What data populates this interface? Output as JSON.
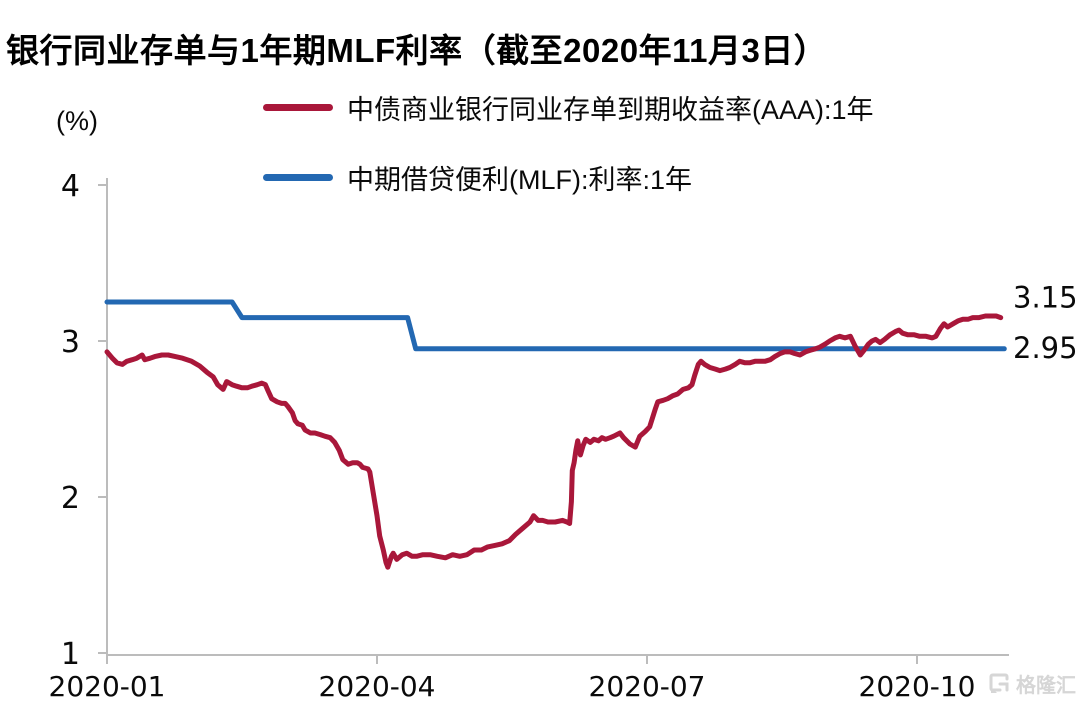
{
  "chart_data": {
    "type": "line",
    "title": "银行同业存单与1年期MLF利率（截至2020年11月3日）",
    "ylabel": "(%)",
    "y_range": [
      1,
      4
    ],
    "y_ticks": [
      "1",
      "2",
      "3",
      "4"
    ],
    "x_range": [
      0,
      10
    ],
    "x_ticks": [
      {
        "pos": 0,
        "label": "2020-01"
      },
      {
        "pos": 3,
        "label": "2020-04"
      },
      {
        "pos": 6,
        "label": "2020-07"
      },
      {
        "pos": 9,
        "label": "2020-10"
      }
    ],
    "grid": "off",
    "legend_position": "top-left",
    "series": [
      {
        "name": "中债商业银行同业存单到期收益率(AAA):1年",
        "color": "#a9173a",
        "end_label": "3.15",
        "end_value": 3.15,
        "points": [
          [
            0.0,
            2.93
          ],
          [
            0.06,
            2.89
          ],
          [
            0.11,
            2.86
          ],
          [
            0.17,
            2.85
          ],
          [
            0.22,
            2.87
          ],
          [
            0.28,
            2.88
          ],
          [
            0.33,
            2.89
          ],
          [
            0.39,
            2.91
          ],
          [
            0.42,
            2.88
          ],
          [
            0.48,
            2.89
          ],
          [
            0.53,
            2.9
          ],
          [
            0.61,
            2.91
          ],
          [
            0.68,
            2.91
          ],
          [
            0.76,
            2.9
          ],
          [
            0.84,
            2.89
          ],
          [
            0.94,
            2.87
          ],
          [
            1.03,
            2.84
          ],
          [
            1.11,
            2.8
          ],
          [
            1.18,
            2.77
          ],
          [
            1.23,
            2.72
          ],
          [
            1.29,
            2.69
          ],
          [
            1.33,
            2.74
          ],
          [
            1.39,
            2.72
          ],
          [
            1.44,
            2.71
          ],
          [
            1.5,
            2.7
          ],
          [
            1.56,
            2.7
          ],
          [
            1.61,
            2.71
          ],
          [
            1.67,
            2.72
          ],
          [
            1.72,
            2.73
          ],
          [
            1.76,
            2.72
          ],
          [
            1.79,
            2.68
          ],
          [
            1.83,
            2.63
          ],
          [
            1.89,
            2.61
          ],
          [
            1.94,
            2.6
          ],
          [
            1.98,
            2.6
          ],
          [
            2.01,
            2.58
          ],
          [
            2.06,
            2.54
          ],
          [
            2.09,
            2.49
          ],
          [
            2.12,
            2.47
          ],
          [
            2.17,
            2.46
          ],
          [
            2.2,
            2.43
          ],
          [
            2.26,
            2.41
          ],
          [
            2.31,
            2.41
          ],
          [
            2.37,
            2.4
          ],
          [
            2.42,
            2.39
          ],
          [
            2.48,
            2.38
          ],
          [
            2.53,
            2.35
          ],
          [
            2.58,
            2.3
          ],
          [
            2.62,
            2.24
          ],
          [
            2.68,
            2.21
          ],
          [
            2.73,
            2.22
          ],
          [
            2.78,
            2.22
          ],
          [
            2.81,
            2.21
          ],
          [
            2.84,
            2.19
          ],
          [
            2.9,
            2.18
          ],
          [
            2.92,
            2.16
          ],
          [
            2.96,
            2.02
          ],
          [
            3.0,
            1.88
          ],
          [
            3.03,
            1.75
          ],
          [
            3.07,
            1.66
          ],
          [
            3.1,
            1.58
          ],
          [
            3.12,
            1.55
          ],
          [
            3.16,
            1.62
          ],
          [
            3.18,
            1.64
          ],
          [
            3.22,
            1.6
          ],
          [
            3.28,
            1.63
          ],
          [
            3.33,
            1.64
          ],
          [
            3.39,
            1.62
          ],
          [
            3.44,
            1.62
          ],
          [
            3.51,
            1.63
          ],
          [
            3.59,
            1.63
          ],
          [
            3.67,
            1.62
          ],
          [
            3.76,
            1.61
          ],
          [
            3.84,
            1.63
          ],
          [
            3.92,
            1.62
          ],
          [
            4.0,
            1.63
          ],
          [
            4.08,
            1.66
          ],
          [
            4.16,
            1.66
          ],
          [
            4.23,
            1.68
          ],
          [
            4.31,
            1.69
          ],
          [
            4.39,
            1.7
          ],
          [
            4.47,
            1.72
          ],
          [
            4.54,
            1.76
          ],
          [
            4.62,
            1.8
          ],
          [
            4.7,
            1.84
          ],
          [
            4.74,
            1.88
          ],
          [
            4.79,
            1.85
          ],
          [
            4.84,
            1.85
          ],
          [
            4.9,
            1.84
          ],
          [
            4.98,
            1.84
          ],
          [
            5.06,
            1.85
          ],
          [
            5.11,
            1.84
          ],
          [
            5.14,
            1.83
          ],
          [
            5.16,
            1.97
          ],
          [
            5.17,
            2.17
          ],
          [
            5.19,
            2.22
          ],
          [
            5.21,
            2.3
          ],
          [
            5.23,
            2.36
          ],
          [
            5.26,
            2.27
          ],
          [
            5.29,
            2.33
          ],
          [
            5.32,
            2.37
          ],
          [
            5.37,
            2.35
          ],
          [
            5.41,
            2.37
          ],
          [
            5.46,
            2.36
          ],
          [
            5.5,
            2.38
          ],
          [
            5.54,
            2.37
          ],
          [
            5.59,
            2.38
          ],
          [
            5.63,
            2.39
          ],
          [
            5.7,
            2.41
          ],
          [
            5.74,
            2.38
          ],
          [
            5.81,
            2.34
          ],
          [
            5.87,
            2.32
          ],
          [
            5.92,
            2.39
          ],
          [
            5.98,
            2.42
          ],
          [
            6.03,
            2.45
          ],
          [
            6.09,
            2.56
          ],
          [
            6.12,
            2.61
          ],
          [
            6.18,
            2.62
          ],
          [
            6.23,
            2.63
          ],
          [
            6.29,
            2.65
          ],
          [
            6.34,
            2.66
          ],
          [
            6.4,
            2.69
          ],
          [
            6.46,
            2.7
          ],
          [
            6.5,
            2.72
          ],
          [
            6.53,
            2.78
          ],
          [
            6.57,
            2.85
          ],
          [
            6.6,
            2.87
          ],
          [
            6.64,
            2.85
          ],
          [
            6.7,
            2.83
          ],
          [
            6.76,
            2.82
          ],
          [
            6.81,
            2.81
          ],
          [
            6.87,
            2.82
          ],
          [
            6.92,
            2.83
          ],
          [
            6.98,
            2.85
          ],
          [
            7.03,
            2.87
          ],
          [
            7.09,
            2.86
          ],
          [
            7.14,
            2.86
          ],
          [
            7.2,
            2.87
          ],
          [
            7.26,
            2.87
          ],
          [
            7.31,
            2.87
          ],
          [
            7.37,
            2.88
          ],
          [
            7.42,
            2.9
          ],
          [
            7.48,
            2.92
          ],
          [
            7.53,
            2.93
          ],
          [
            7.59,
            2.93
          ],
          [
            7.64,
            2.92
          ],
          [
            7.7,
            2.91
          ],
          [
            7.76,
            2.93
          ],
          [
            7.81,
            2.94
          ],
          [
            7.87,
            2.95
          ],
          [
            7.92,
            2.96
          ],
          [
            7.98,
            2.98
          ],
          [
            8.03,
            3.0
          ],
          [
            8.09,
            3.02
          ],
          [
            8.14,
            3.03
          ],
          [
            8.2,
            3.02
          ],
          [
            8.26,
            3.03
          ],
          [
            8.31,
            2.97
          ],
          [
            8.37,
            2.91
          ],
          [
            8.41,
            2.94
          ],
          [
            8.46,
            2.98
          ],
          [
            8.5,
            3.0
          ],
          [
            8.54,
            3.01
          ],
          [
            8.59,
            2.99
          ],
          [
            8.64,
            3.01
          ],
          [
            8.7,
            3.04
          ],
          [
            8.76,
            3.06
          ],
          [
            8.8,
            3.07
          ],
          [
            8.84,
            3.05
          ],
          [
            8.9,
            3.04
          ],
          [
            8.97,
            3.04
          ],
          [
            9.03,
            3.03
          ],
          [
            9.1,
            3.03
          ],
          [
            9.17,
            3.02
          ],
          [
            9.21,
            3.03
          ],
          [
            9.26,
            3.08
          ],
          [
            9.3,
            3.11
          ],
          [
            9.34,
            3.09
          ],
          [
            9.4,
            3.11
          ],
          [
            9.46,
            3.13
          ],
          [
            9.51,
            3.14
          ],
          [
            9.57,
            3.14
          ],
          [
            9.62,
            3.15
          ],
          [
            9.69,
            3.15
          ],
          [
            9.76,
            3.16
          ],
          [
            9.82,
            3.16
          ],
          [
            9.88,
            3.16
          ],
          [
            9.93,
            3.15
          ]
        ]
      },
      {
        "name": "中期借贷便利(MLF):利率:1年",
        "color": "#2368b2",
        "end_label": "2.95",
        "end_value": 2.95,
        "points": [
          [
            0.0,
            3.25
          ],
          [
            1.39,
            3.25
          ],
          [
            1.5,
            3.15
          ],
          [
            3.34,
            3.15
          ],
          [
            3.43,
            2.95
          ],
          [
            9.97,
            2.95
          ]
        ]
      }
    ]
  },
  "watermark": {
    "text": "格隆汇"
  }
}
